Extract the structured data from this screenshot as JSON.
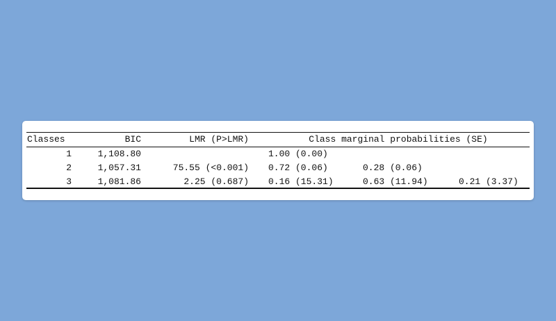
{
  "table": {
    "headers": {
      "classes": "Classes",
      "bic": "BIC",
      "lmr": "LMR (P>LMR)",
      "probs": "Class marginal probabilities (SE)"
    },
    "rows": [
      {
        "classes": "1",
        "bic": "1,108.80",
        "lmr": "",
        "p1": "1.00 (0.00)",
        "p2": "",
        "p3": ""
      },
      {
        "classes": "2",
        "bic": "1,057.31",
        "lmr": "75.55 (<0.001)",
        "p1": "0.72 (0.06)",
        "p2": "0.28 (0.06)",
        "p3": ""
      },
      {
        "classes": "3",
        "bic": "1,081.86",
        "lmr": "2.25 (0.687)",
        "p1": "0.16 (15.31)",
        "p2": "0.63 (11.94)",
        "p3": "0.21 (3.37)"
      }
    ]
  },
  "colors": {
    "background": "#7da7d9",
    "card": "#ffffff"
  }
}
